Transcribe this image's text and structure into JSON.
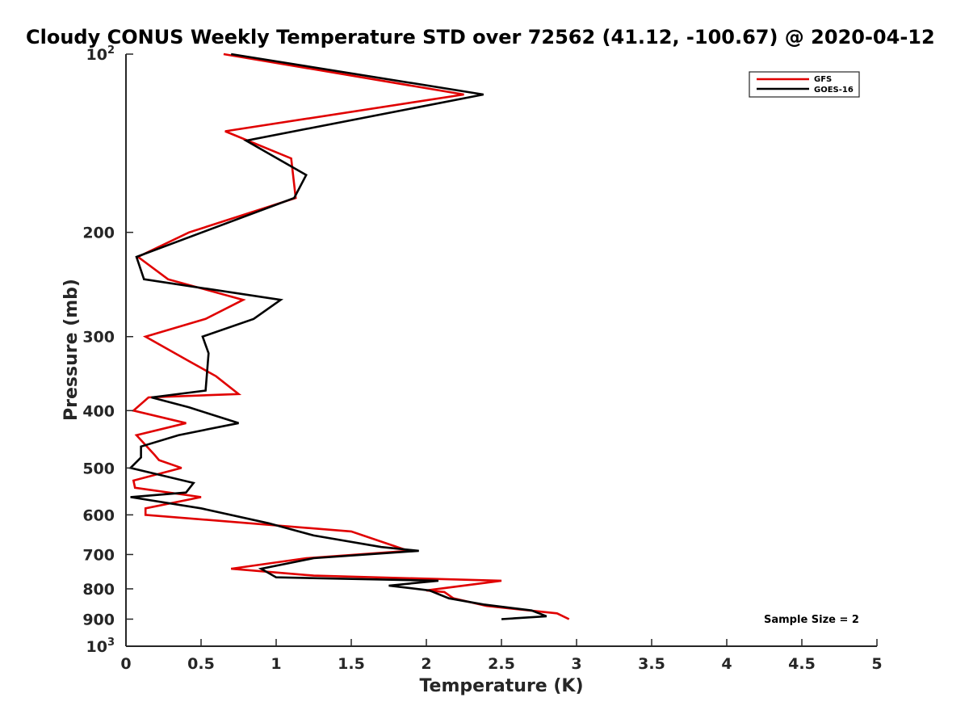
{
  "chart_data": {
    "type": "line",
    "title": "Cloudy CONUS Weekly Temperature STD over 72562 (41.12, -100.67) @ 2020-04-12",
    "xlabel": "Temperature (K)",
    "ylabel": "Pressure (mb)",
    "xlim": [
      0,
      5
    ],
    "ylim": [
      100,
      1000
    ],
    "yscale": "log",
    "yreversed": true,
    "grid": false,
    "legend_position": "top-right",
    "xticks": [
      "0",
      "0.5",
      "1",
      "1.5",
      "2",
      "2.5",
      "3",
      "3.5",
      "4",
      "4.5",
      "5"
    ],
    "yticks": [
      {
        "value": 100,
        "base": "10",
        "exp": "2"
      },
      {
        "value": 200,
        "label": "200"
      },
      {
        "value": 300,
        "label": "300"
      },
      {
        "value": 400,
        "label": "400"
      },
      {
        "value": 500,
        "label": "500"
      },
      {
        "value": 600,
        "label": "600"
      },
      {
        "value": 700,
        "label": "700"
      },
      {
        "value": 800,
        "label": "800"
      },
      {
        "value": 900,
        "label": "900"
      },
      {
        "value": 1000,
        "base": "10",
        "exp": "3"
      }
    ],
    "annotation": "Sample Size = 2",
    "series": [
      {
        "name": "GFS",
        "color": "#e00000",
        "points": [
          [
            0.65,
            100
          ],
          [
            2.25,
            117
          ],
          [
            0.66,
            135
          ],
          [
            1.1,
            150
          ],
          [
            1.13,
            175
          ],
          [
            0.42,
            200
          ],
          [
            0.08,
            220
          ],
          [
            0.28,
            240
          ],
          [
            0.78,
            260
          ],
          [
            0.53,
            280
          ],
          [
            0.13,
            300
          ],
          [
            0.42,
            330
          ],
          [
            0.6,
            350
          ],
          [
            0.75,
            375
          ],
          [
            0.15,
            380
          ],
          [
            0.05,
            400
          ],
          [
            0.4,
            420
          ],
          [
            0.07,
            440
          ],
          [
            0.19,
            475
          ],
          [
            0.22,
            485
          ],
          [
            0.37,
            500
          ],
          [
            0.05,
            525
          ],
          [
            0.06,
            540
          ],
          [
            0.5,
            560
          ],
          [
            0.13,
            585
          ],
          [
            0.13,
            600
          ],
          [
            1.5,
            640
          ],
          [
            1.88,
            690
          ],
          [
            1.2,
            710
          ],
          [
            0.7,
            740
          ],
          [
            1.25,
            760
          ],
          [
            2.5,
            775
          ],
          [
            2.0,
            805
          ],
          [
            2.12,
            810
          ],
          [
            2.18,
            830
          ],
          [
            2.4,
            855
          ],
          [
            2.87,
            880
          ],
          [
            2.95,
            900
          ]
        ]
      },
      {
        "name": "GOES-16",
        "color": "#000000",
        "points": [
          [
            0.7,
            100
          ],
          [
            2.38,
            117
          ],
          [
            0.8,
            140
          ],
          [
            1.2,
            160
          ],
          [
            1.12,
            175
          ],
          [
            0.07,
            220
          ],
          [
            0.12,
            240
          ],
          [
            1.03,
            260
          ],
          [
            0.85,
            280
          ],
          [
            0.51,
            300
          ],
          [
            0.55,
            320
          ],
          [
            0.53,
            370
          ],
          [
            0.17,
            380
          ],
          [
            0.42,
            395
          ],
          [
            0.75,
            420
          ],
          [
            0.35,
            440
          ],
          [
            0.1,
            460
          ],
          [
            0.1,
            480
          ],
          [
            0.03,
            500
          ],
          [
            0.45,
            530
          ],
          [
            0.4,
            550
          ],
          [
            0.03,
            560
          ],
          [
            0.5,
            585
          ],
          [
            0.95,
            620
          ],
          [
            1.25,
            650
          ],
          [
            1.7,
            680
          ],
          [
            1.95,
            690
          ],
          [
            1.25,
            710
          ],
          [
            0.9,
            740
          ],
          [
            1.0,
            765
          ],
          [
            2.08,
            775
          ],
          [
            1.75,
            790
          ],
          [
            2.02,
            805
          ],
          [
            2.15,
            830
          ],
          [
            2.38,
            850
          ],
          [
            2.7,
            870
          ],
          [
            2.8,
            890
          ],
          [
            2.5,
            900
          ]
        ]
      }
    ]
  }
}
